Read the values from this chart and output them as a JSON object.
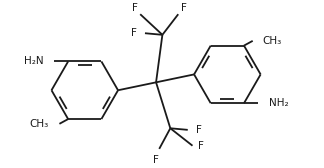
{
  "bg_color": "#ffffff",
  "line_color": "#1a1a1a",
  "line_width": 1.3,
  "font_size": 7.5,
  "figsize": [
    3.24,
    1.68
  ],
  "dpi": 100,
  "xlim": [
    -1.7,
    1.85
  ],
  "ylim": [
    -1.05,
    1.0
  ]
}
